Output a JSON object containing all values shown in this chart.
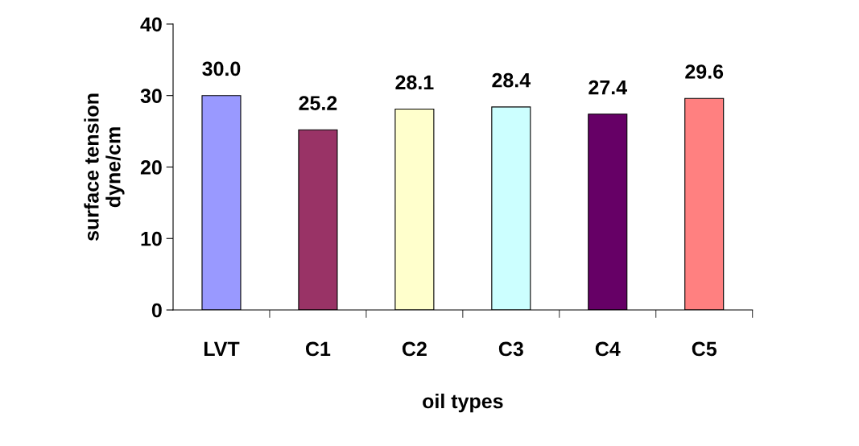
{
  "chart_data": {
    "type": "bar",
    "xlabel": "oil types",
    "ylabel": "surface tension\ndyne/cm",
    "categories": [
      "LVT",
      "C1",
      "C2",
      "C3",
      "C4",
      "C5"
    ],
    "values": [
      30.0,
      25.2,
      28.1,
      28.4,
      27.4,
      29.6
    ],
    "colors": [
      "#9999ff",
      "#993366",
      "#ffffcc",
      "#ccffff",
      "#660066",
      "#ff8080"
    ],
    "value_labels": [
      "30.0",
      "25.2",
      "28.1",
      "28.4",
      "27.4",
      "29.6"
    ],
    "ylim": [
      0,
      40
    ],
    "yticks": [
      0,
      10,
      20,
      30,
      40
    ],
    "grid": false,
    "legend": false
  }
}
